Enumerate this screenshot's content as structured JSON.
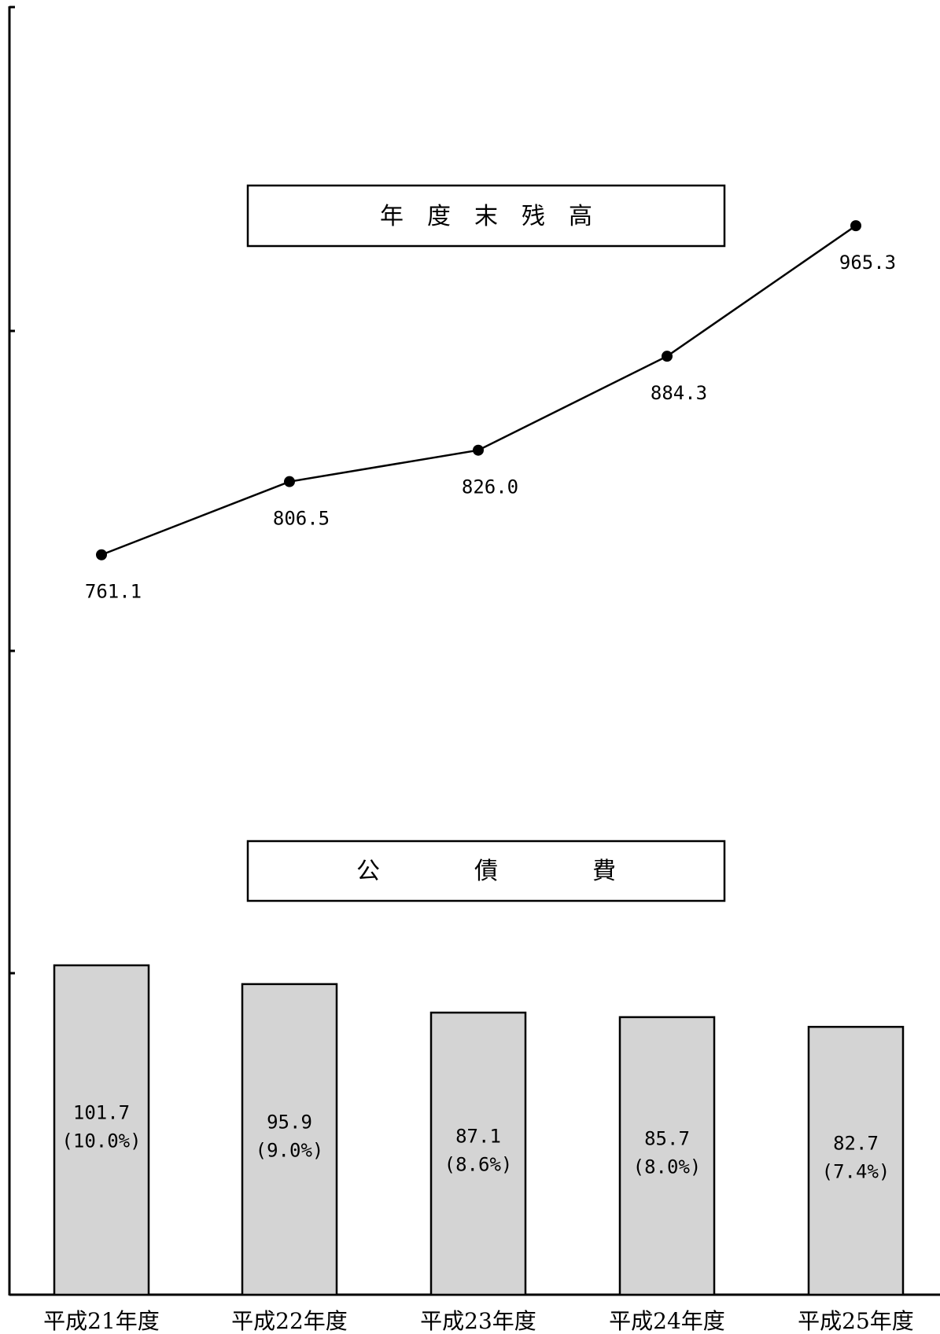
{
  "chart_data": [
    {
      "type": "line",
      "title": "年　度　末　残　高",
      "categories": [
        "平成21年度",
        "平成22年度",
        "平成23年度",
        "平成24年度",
        "平成25年度"
      ],
      "values": [
        761.1,
        806.5,
        826.0,
        884.3,
        965.3
      ],
      "value_labels": [
        "761.1",
        "806.5",
        "826.0",
        "884.3",
        "965.3"
      ],
      "ylim": [
        500,
        1000
      ],
      "marker": "filled-circle",
      "line_color": "#000000"
    },
    {
      "type": "bar",
      "title": "公　　　　債　　　　費",
      "categories": [
        "平成21年度",
        "平成22年度",
        "平成23年度",
        "平成24年度",
        "平成25年度"
      ],
      "values": [
        101.7,
        95.9,
        87.1,
        85.7,
        82.7
      ],
      "value_labels": [
        "101.7",
        "95.9",
        "87.1",
        "85.7",
        "82.7"
      ],
      "percent_labels": [
        "(10.0%)",
        "(9.0%)",
        "(8.6%)",
        "(8.0%)",
        "(7.4%)"
      ],
      "ylim": [
        0,
        100
      ],
      "bar_color": "#d4d4d4",
      "bar_edge_color": "#000000"
    }
  ],
  "x_axis": {
    "categories": [
      "平成21年度",
      "平成22年度",
      "平成23年度",
      "平成24年度",
      "平成25年度"
    ]
  }
}
